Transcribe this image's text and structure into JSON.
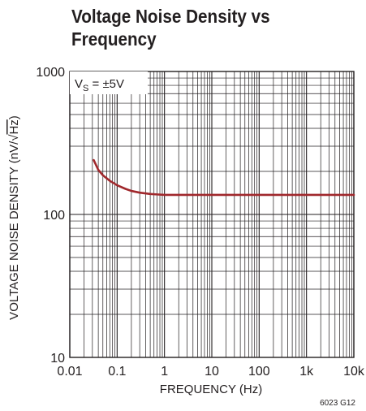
{
  "chart_data": {
    "type": "line",
    "title": "Voltage Noise Density vs Frequency",
    "xlabel": "FREQUENCY (Hz)",
    "ylabel_parts": {
      "main": "VOLTAGE NOISE DENSITY (nV/",
      "radical": "√",
      "radicand": "Hz",
      "close": ")"
    },
    "annotation": {
      "lead": "V",
      "sub": "S",
      "rest": " = ±5V"
    },
    "figure_id": "6023 G12",
    "xscale": "log",
    "yscale": "log",
    "xlim": [
      0.01,
      10000
    ],
    "ylim": [
      10,
      1000
    ],
    "xticks": [
      {
        "value": 0.01,
        "label": "0.01"
      },
      {
        "value": 0.1,
        "label": "0.1"
      },
      {
        "value": 1,
        "label": "1"
      },
      {
        "value": 10,
        "label": "10"
      },
      {
        "value": 100,
        "label": "100"
      },
      {
        "value": 1000,
        "label": "1k"
      },
      {
        "value": 10000,
        "label": "10k"
      }
    ],
    "yticks": [
      {
        "value": 10,
        "label": "10"
      },
      {
        "value": 100,
        "label": "100"
      },
      {
        "value": 1000,
        "label": "1000"
      }
    ],
    "grid": true,
    "line_color": "#a0282c",
    "series": [
      {
        "x": [
          0.032,
          0.04,
          0.05,
          0.07,
          0.1,
          0.15,
          0.2,
          0.3,
          0.5,
          0.7,
          1,
          2,
          5,
          10,
          100,
          1000,
          10000
        ],
        "y": [
          240,
          205,
          188,
          172,
          160,
          151,
          146,
          142,
          139,
          138,
          137,
          137,
          137,
          137,
          137,
          137,
          137
        ]
      }
    ]
  }
}
